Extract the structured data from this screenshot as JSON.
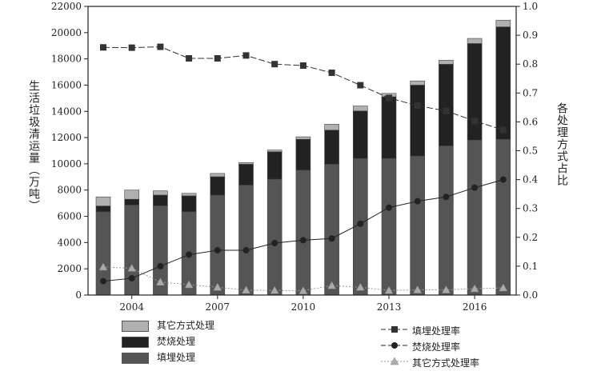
{
  "chart_data": {
    "type": "bar",
    "stacked": true,
    "categories": [
      "2003",
      "2004",
      "2005",
      "2006",
      "2007",
      "2008",
      "2009",
      "2010",
      "2011",
      "2012",
      "2013",
      "2014",
      "2015",
      "2016",
      "2017"
    ],
    "x_tick_labels": [
      "2004",
      "2007",
      "2010",
      "2013",
      "2016"
    ],
    "ylabel": "生活垃圾清运量（万吨）",
    "ylim": [
      0,
      22000
    ],
    "y_ticks": [
      0,
      2000,
      4000,
      6000,
      8000,
      10000,
      12000,
      14000,
      16000,
      18000,
      20000,
      22000
    ],
    "y2label": "各处理方式占比",
    "y2lim": [
      0,
      1.0
    ],
    "y2_ticks": [
      "0.0",
      "0.1",
      "0.2",
      "0.3",
      "0.4",
      "0.5",
      "0.6",
      "0.7",
      "0.8",
      "0.9",
      "1.0"
    ],
    "grid": false,
    "legend_placement": "bottom",
    "series": [
      {
        "name": "填埋处理",
        "kind": "bar",
        "color": "#555555",
        "values": [
          6350,
          6860,
          6800,
          6350,
          7620,
          8380,
          8830,
          9520,
          9970,
          10410,
          10410,
          10600,
          11370,
          11810,
          11870
        ]
      },
      {
        "name": "焚烧处理",
        "kind": "bar",
        "color": "#222222",
        "values": [
          440,
          440,
          820,
          1210,
          1400,
          1590,
          2090,
          2350,
          2600,
          3620,
          4700,
          5400,
          6220,
          7360,
          8570
        ]
      },
      {
        "name": "其它方式处理",
        "kind": "bar",
        "color": "#b0b0b0",
        "values": [
          690,
          700,
          320,
          190,
          250,
          130,
          130,
          190,
          450,
          380,
          260,
          320,
          310,
          390,
          510
        ]
      },
      {
        "name": "填埋处理率",
        "kind": "line",
        "axis": "right",
        "marker": "square",
        "color": "#333333",
        "values": [
          0.858,
          0.857,
          0.86,
          0.82,
          0.82,
          0.83,
          0.8,
          0.795,
          0.77,
          0.727,
          0.683,
          0.656,
          0.638,
          0.603,
          0.572
        ]
      },
      {
        "name": "焚烧处理率",
        "kind": "line",
        "axis": "right",
        "marker": "circle",
        "color": "#222222",
        "values": [
          0.048,
          0.058,
          0.1,
          0.14,
          0.155,
          0.155,
          0.18,
          0.19,
          0.196,
          0.247,
          0.303,
          0.325,
          0.34,
          0.372,
          0.4
        ]
      },
      {
        "name": "其它方式处理率",
        "kind": "line",
        "axis": "right",
        "marker": "triangle",
        "color": "#999999",
        "values": [
          0.097,
          0.093,
          0.045,
          0.036,
          0.027,
          0.017,
          0.016,
          0.015,
          0.033,
          0.027,
          0.016,
          0.018,
          0.018,
          0.022,
          0.025
        ]
      }
    ]
  }
}
